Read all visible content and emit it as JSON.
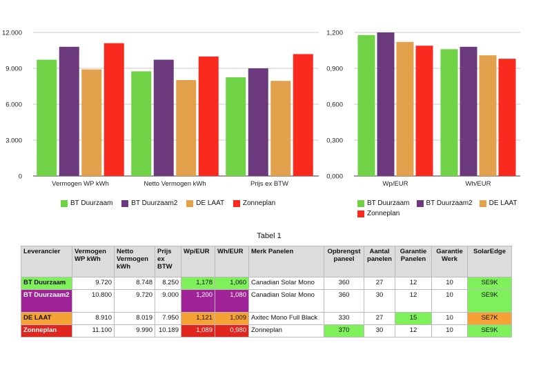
{
  "colors": {
    "bt_duurzaam": "#6fd345",
    "bt_duurzaam2": "#6c3a7c",
    "de_laat": "#e3a14b",
    "zonneplan": "#fb2a1f",
    "table_green": "#7ef05a",
    "table_purple": "#a12398",
    "table_orange": "#f6a133",
    "table_red": "#e1261f"
  },
  "chart_data": [
    {
      "type": "bar",
      "title": "",
      "categories": [
        "Vermogen WP kWh",
        "Netto Vermogen kWh",
        "Prijs ex BTW"
      ],
      "series": [
        {
          "name": "BT Duurzaam",
          "values": [
            9.72,
            8.748,
            8.25
          ]
        },
        {
          "name": "BT Duurzaam2",
          "values": [
            10.8,
            9.72,
            9.0
          ]
        },
        {
          "name": "DE LAAT",
          "values": [
            8.91,
            8.019,
            7.95
          ]
        },
        {
          "name": "Zonneplan",
          "values": [
            11.1,
            9.99,
            10.189
          ]
        }
      ],
      "yticks": [
        "0",
        "3.000",
        "6.000",
        "9.000",
        "12.000"
      ],
      "ylim": [
        0,
        12
      ],
      "grid": true,
      "legend": "bottom"
    },
    {
      "type": "bar",
      "title": "",
      "categories": [
        "Wp/EUR",
        "Wh/EUR"
      ],
      "series": [
        {
          "name": "BT Duurzaam",
          "values": [
            1.178,
            1.06
          ]
        },
        {
          "name": "BT Duurzaam2",
          "values": [
            1.2,
            1.08
          ]
        },
        {
          "name": "DE LAAT",
          "values": [
            1.121,
            1.009
          ]
        },
        {
          "name": "Zonneplan",
          "values": [
            1.089,
            0.98
          ]
        }
      ],
      "yticks": [
        "0,000",
        "0,300",
        "0,600",
        "0,900",
        "1,200"
      ],
      "ylim": [
        0,
        1.2
      ],
      "grid": true,
      "legend": "bottom"
    }
  ],
  "table": {
    "title": "Tabel 1",
    "headers": [
      "Leverancier",
      "Vermogen WP kWh",
      "Netto Vermogen kWh",
      "Prijs ex BTW",
      "Wp/EUR",
      "Wh/EUR",
      "Merk Panelen",
      "Opbrengst paneel",
      "Aantal panelen",
      "Garantie Panelen",
      "Garantie Werk",
      "SolarEdge"
    ],
    "rows": [
      [
        "BT Duurzaam",
        "9.720",
        "8.748",
        "8.250",
        "1,178",
        "1,060",
        "Canadian Solar Mono",
        "360",
        "27",
        "12",
        "10",
        "SE9K"
      ],
      [
        "BT Duurzaam2",
        "10.800",
        "9.720",
        "9.000",
        "1,200",
        "1,080",
        "Canadian Solar Mono",
        "360",
        "30",
        "12",
        "10",
        "SE9K"
      ],
      [
        "DE LAAT",
        "8.910",
        "8.019",
        "7.950",
        "1,121",
        "1,009",
        "Axitec Mono Full Black",
        "330",
        "27",
        "15",
        "10",
        "SE7K"
      ],
      [
        "Zonneplan",
        "11.100",
        "9.990",
        "10.189",
        "1,089",
        "0,980",
        "Zonneplan",
        "370",
        "30",
        "12",
        "10",
        "SE9K"
      ]
    ]
  }
}
